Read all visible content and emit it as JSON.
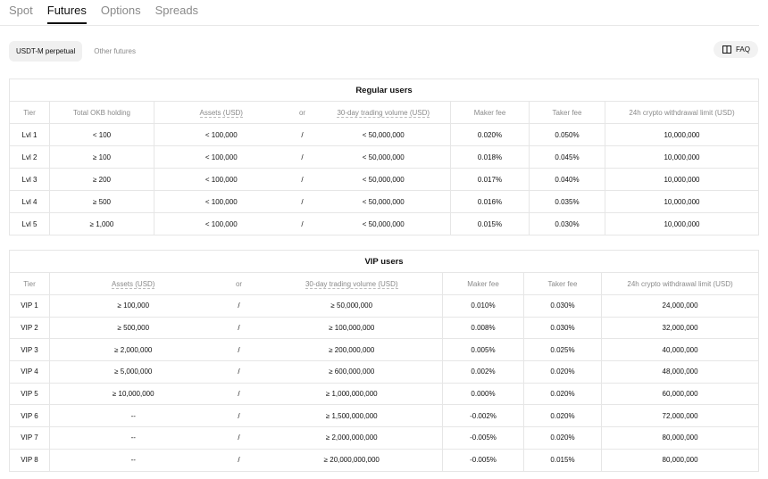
{
  "tabs": [
    "Spot",
    "Futures",
    "Options",
    "Spreads"
  ],
  "sub_tabs": [
    "USDT-M perpetual",
    "Other futures"
  ],
  "faq": "FAQ",
  "regular_users": {
    "title": "Regular users",
    "headers": [
      "Tier",
      "Total OKB holding",
      "Assets (USD)",
      "or",
      "30-day trading volume (USD)",
      "Maker fee",
      "Taker fee",
      "24h crypto withdrawal limit (USD)"
    ],
    "rows": [
      [
        "Lvl 1",
        "< 100",
        "< 100,000",
        "/",
        "< 50,000,000",
        "0.020%",
        "0.050%",
        "10,000,000"
      ],
      [
        "Lvl 2",
        "≥ 100",
        "< 100,000",
        "/",
        "< 50,000,000",
        "0.018%",
        "0.045%",
        "10,000,000"
      ],
      [
        "Lvl 3",
        "≥ 200",
        "< 100,000",
        "/",
        "< 50,000,000",
        "0.017%",
        "0.040%",
        "10,000,000"
      ],
      [
        "Lvl 4",
        "≥ 500",
        "< 100,000",
        "/",
        "< 50,000,000",
        "0.016%",
        "0.035%",
        "10,000,000"
      ],
      [
        "Lvl 5",
        "≥ 1,000",
        "< 100,000",
        "/",
        "< 50,000,000",
        "0.015%",
        "0.030%",
        "10,000,000"
      ]
    ]
  },
  "vip_users": {
    "title": "VIP users",
    "headers": [
      "Tier",
      "Assets (USD)",
      "or",
      "30-day trading volume (USD)",
      "Maker fee",
      "Taker fee",
      "24h crypto withdrawal limit (USD)"
    ],
    "rows": [
      [
        "VIP 1",
        "≥ 100,000",
        "/",
        "≥ 50,000,000",
        "0.010%",
        "0.030%",
        "24,000,000"
      ],
      [
        "VIP 2",
        "≥ 500,000",
        "/",
        "≥ 100,000,000",
        "0.008%",
        "0.030%",
        "32,000,000"
      ],
      [
        "VIP 3",
        "≥ 2,000,000",
        "/",
        "≥ 200,000,000",
        "0.005%",
        "0.025%",
        "40,000,000"
      ],
      [
        "VIP 4",
        "≥ 5,000,000",
        "/",
        "≥ 600,000,000",
        "0.002%",
        "0.020%",
        "48,000,000"
      ],
      [
        "VIP 5",
        "≥ 10,000,000",
        "/",
        "≥ 1,000,000,000",
        "0.000%",
        "0.020%",
        "60,000,000"
      ],
      [
        "VIP 6",
        "--",
        "/",
        "≥ 1,500,000,000",
        "-0.002%",
        "0.020%",
        "72,000,000"
      ],
      [
        "VIP 7",
        "--",
        "/",
        "≥ 2,000,000,000",
        "-0.005%",
        "0.020%",
        "80,000,000"
      ],
      [
        "VIP 8",
        "--",
        "/",
        "≥ 20,000,000,000",
        "-0.005%",
        "0.015%",
        "80,000,000"
      ]
    ]
  }
}
